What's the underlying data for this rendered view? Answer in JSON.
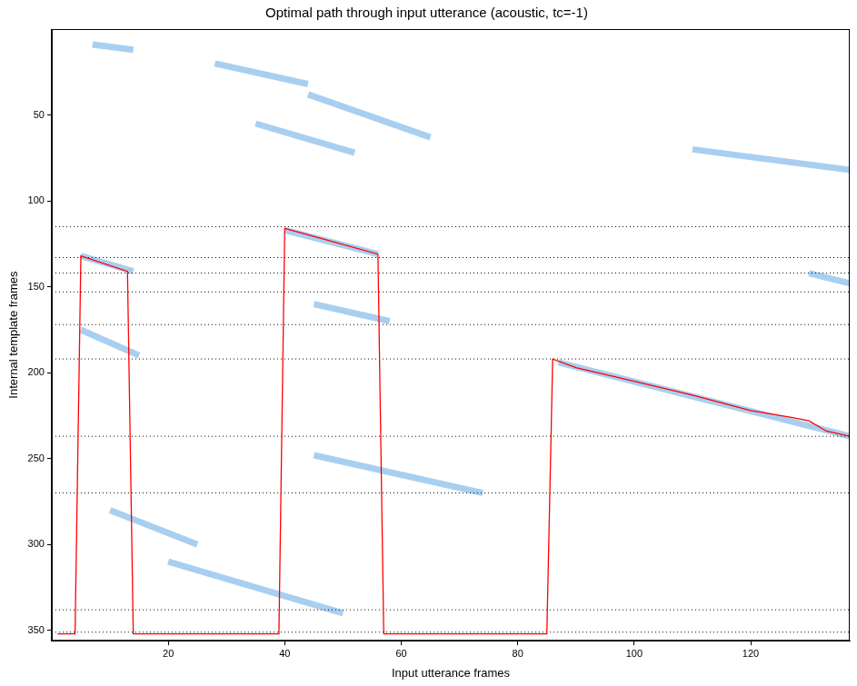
{
  "chart_data": {
    "type": "line",
    "title": "Optimal path through input utterance (acoustic, tc=-1)",
    "x_label": "Input utterance frames",
    "y_label": "Internal template frames",
    "xlim": [
      0,
      137
    ],
    "xticks": [
      20,
      40,
      60,
      80,
      100,
      120
    ],
    "ylim": [
      0,
      356
    ],
    "yticks": [
      50,
      100,
      150,
      200,
      250,
      300,
      350
    ],
    "y_reversed": true,
    "grid": false,
    "path": {
      "color": "#ff0000",
      "x": [
        1,
        4,
        5,
        13,
        14,
        39,
        40,
        56,
        57,
        85,
        86,
        90,
        100,
        110,
        120,
        127,
        130,
        133,
        137
      ],
      "y": [
        352,
        352,
        132,
        141,
        352,
        352,
        116,
        131,
        352,
        352,
        192,
        197,
        205,
        213,
        222,
        226,
        228,
        234,
        237
      ]
    },
    "boundaries": {
      "color": "#000000",
      "line_style": "dotted",
      "values": [
        115,
        133,
        142,
        153,
        172,
        192,
        237,
        270,
        338,
        351
      ]
    },
    "streaks": {
      "color": "#a9cff0",
      "segments": [
        {
          "x": [
            7,
            14
          ],
          "y": [
            9,
            12
          ]
        },
        {
          "x": [
            28,
            44
          ],
          "y": [
            20,
            32
          ]
        },
        {
          "x": [
            44,
            65
          ],
          "y": [
            38,
            63
          ]
        },
        {
          "x": [
            35,
            52
          ],
          "y": [
            55,
            72
          ]
        },
        {
          "x": [
            5,
            14
          ],
          "y": [
            132,
            141
          ]
        },
        {
          "x": [
            40,
            56
          ],
          "y": [
            117,
            131
          ]
        },
        {
          "x": [
            45,
            58
          ],
          "y": [
            160,
            170
          ]
        },
        {
          "x": [
            5,
            15
          ],
          "y": [
            175,
            190
          ]
        },
        {
          "x": [
            45,
            74
          ],
          "y": [
            248,
            270
          ]
        },
        {
          "x": [
            10,
            25
          ],
          "y": [
            280,
            300
          ]
        },
        {
          "x": [
            87,
            137
          ],
          "y": [
            194,
            237
          ]
        },
        {
          "x": [
            130,
            137
          ],
          "y": [
            142,
            148
          ]
        },
        {
          "x": [
            110,
            137
          ],
          "y": [
            70,
            82
          ]
        },
        {
          "x": [
            20,
            50
          ],
          "y": [
            310,
            340
          ]
        }
      ]
    }
  }
}
